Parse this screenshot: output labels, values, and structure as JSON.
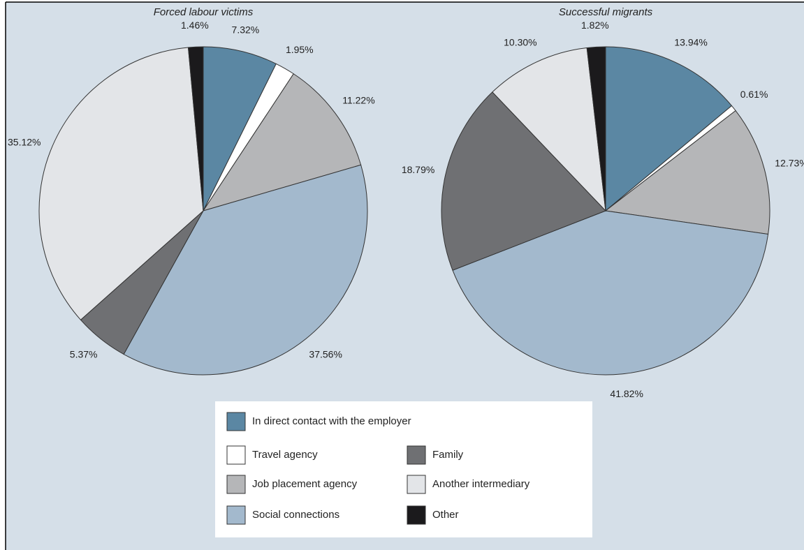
{
  "chart_data": [
    {
      "type": "pie",
      "title": "Forced labour victims",
      "categories": [
        "In direct contact with the employer",
        "Travel agency",
        "Job placement agency",
        "Social connections",
        "Family",
        "Another intermediary",
        "Other"
      ],
      "colors": [
        "#5b87a3",
        "#ffffff",
        "#b5b6b8",
        "#a3b9cd",
        "#6f7073",
        "#e3e5e8",
        "#1b1a1c"
      ],
      "values": [
        7.32,
        1.95,
        11.22,
        37.56,
        5.37,
        35.12,
        1.46
      ],
      "value_labels": [
        "7.32%",
        "1.95%",
        "11.22%",
        "37.56%",
        "5.37%",
        "35.12%",
        "1.46%"
      ]
    },
    {
      "type": "pie",
      "title": "Successful migrants",
      "categories": [
        "In direct contact with the employer",
        "Travel agency",
        "Job placement agency",
        "Social connections",
        "Family",
        "Another intermediary",
        "Other"
      ],
      "colors": [
        "#5b87a3",
        "#ffffff",
        "#b5b6b8",
        "#a3b9cd",
        "#6f7073",
        "#e3e5e8",
        "#1b1a1c"
      ],
      "values": [
        13.94,
        0.61,
        12.73,
        41.82,
        18.79,
        10.3,
        1.82
      ],
      "value_labels": [
        "13.94%",
        "0.61%",
        "12.73%",
        "41.82%",
        "18.79%",
        "10.30%",
        "1.82%"
      ]
    }
  ]
}
